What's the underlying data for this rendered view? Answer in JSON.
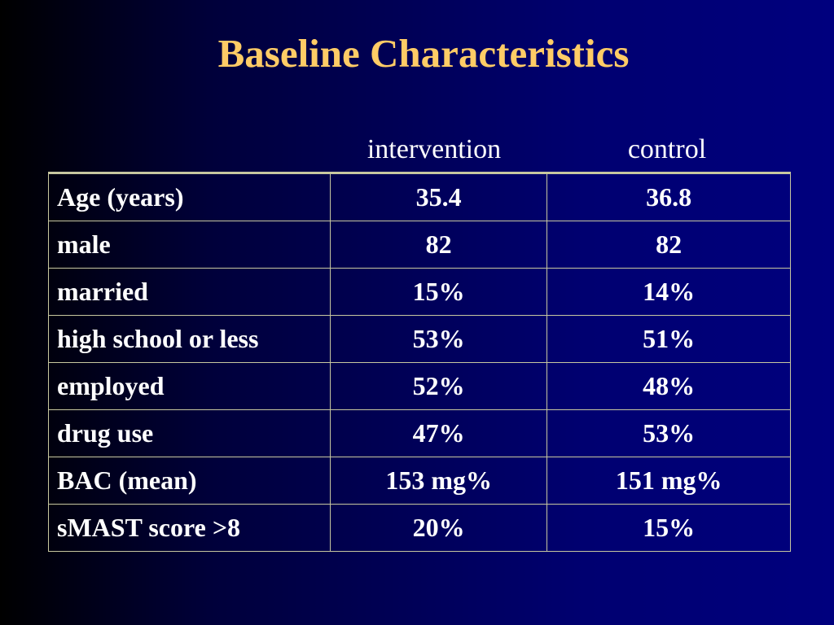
{
  "slide": {
    "title": "Baseline Characteristics"
  },
  "table": {
    "columns": [
      "",
      "intervention",
      "control"
    ],
    "rows": [
      {
        "label": "Age (years)",
        "intervention": "35.4",
        "control": "36.8"
      },
      {
        "label": "male",
        "intervention": "82",
        "control": "82"
      },
      {
        "label": "married",
        "intervention": "15%",
        "control": "14%"
      },
      {
        "label": "high school or less",
        "intervention": "53%",
        "control": "51%"
      },
      {
        "label": "employed",
        "intervention": "52%",
        "control": "48%"
      },
      {
        "label": "drug use",
        "intervention": "47%",
        "control": "53%"
      },
      {
        "label": "BAC (mean)",
        "intervention": "153 mg%",
        "control": "151 mg%"
      },
      {
        "label": "sMAST score >8",
        "intervention": "20%",
        "control": "15%"
      }
    ]
  },
  "colors": {
    "title": "#ffcc66",
    "text": "#ffffff",
    "background": "#00007e",
    "grid": "#c8c8a0"
  }
}
